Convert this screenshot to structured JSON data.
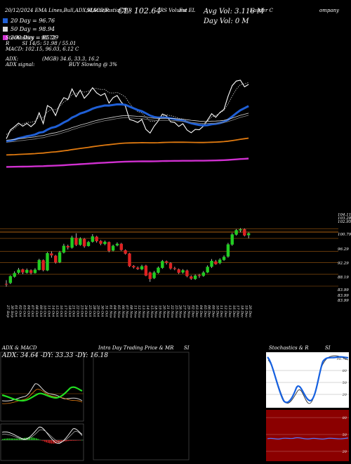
{
  "header": {
    "date": "20/12/2024",
    "ema": "EMA Lines,Bull,ADX,MACD,R",
    "si": "SI,Stochastics,MR",
    "rs": "RS Volume EL",
    "ticker_fragment": "Est",
    "company_fragment": "Lauder C",
    "company_fragment2": "ompany",
    "cl": "CL: 102.64",
    "avg_vol": "Avg Vol: 3.116  M",
    "day_vol": "Day Vol: 0   M"
  },
  "legend": [
    {
      "label": "20  Day = 96.76",
      "color": "#1f5fd6"
    },
    {
      "label": "50  Day = 98.94",
      "color": "#d8d8d8"
    },
    {
      "label": "200  Day = 85.29",
      "color": "#d030d0"
    }
  ],
  "indicators": {
    "stochastics": "Stochastics = 98.73",
    "r": "R",
    "si_line": "SI 14/5: 51.98  / 55.01",
    "macd": "MACD: 102.15,  96.03,  6.12  C",
    "adx_label": "ADX:",
    "adx_values": "(MGB) 34.6,  33.3,  16.2",
    "adx_signal_label": "ADX  signal:",
    "adx_signal": "BUY Slowing @ 3%"
  },
  "price_labels": [
    "104.11",
    "103.28",
    "102.95",
    "100.79",
    "96.29",
    "92.29",
    "88.19",
    "83.99",
    "83.99",
    "83.99"
  ],
  "date_labels": [
    "27 Sep",
    "30 Sep",
    "01 Oct",
    "02 Oct",
    "03 Oct",
    "04 Oct",
    "07 Oct",
    "08 Oct",
    "09 Oct",
    "10 Oct",
    "11 Oct",
    "14 Oct",
    "15 Oct",
    "16 Oct",
    "17 Oct",
    "18 Oct",
    "21 Oct",
    "22 Oct",
    "23 Oct",
    "24 Oct",
    "25 Oct",
    "28 Oct",
    "29 Oct",
    "30 Oct",
    "31 Oct",
    "01 Nov",
    "04 Nov",
    "05 Nov",
    "06 Nov",
    "07 Nov",
    "08 Nov",
    "11 Nov",
    "12 Nov",
    "13 Nov",
    "14 Nov",
    "15 Nov",
    "18 Nov",
    "19 Nov",
    "20 Nov",
    "21 Nov",
    "22 Nov",
    "25 Nov",
    "26 Nov",
    "27 Nov",
    "29 Nov",
    "02 Dec",
    "03 Dec",
    "04 Dec",
    "05 Dec",
    "06 Dec",
    "09 Dec",
    "10 Dec",
    "11 Dec",
    "12 Dec",
    "13 Dec",
    "16 Dec",
    "17 Dec",
    "18 Dec",
    "19 Dec",
    "20 Dec"
  ],
  "panels": {
    "adx_title": "ADX  & MACD",
    "adx_values": "ADX: 34.64  -DY: 33.33  -DY: 16.18",
    "intra_title": "Intra  Day Trading Price  & MR",
    "intra_si": "SI",
    "stoch_title": "Stochastics & R",
    "stoch_si": "SI",
    "stoch_ticks": [
      "98.73",
      "80",
      "50",
      "20"
    ],
    "si_ticks": [
      "80",
      "50",
      "20"
    ]
  },
  "colors": {
    "up": "#22cc22",
    "down": "#dd2222",
    "ema20": "#1f5fd6",
    "ema50": "#d8d8d8",
    "ema200": "#d030d0",
    "ema100": "#e07a10",
    "grid": "#a05a10",
    "si_bg": "#8b0000"
  },
  "chart_data": {
    "type": "candlestick",
    "x": [
      "27 Sep",
      "30 Sep",
      "01 Oct",
      "02 Oct",
      "03 Oct",
      "04 Oct",
      "07 Oct",
      "08 Oct",
      "09 Oct",
      "10 Oct",
      "11 Oct",
      "14 Oct",
      "15 Oct",
      "16 Oct",
      "17 Oct",
      "18 Oct",
      "21 Oct",
      "22 Oct",
      "23 Oct",
      "24 Oct",
      "25 Oct",
      "28 Oct",
      "29 Oct",
      "30 Oct",
      "31 Oct",
      "01 Nov",
      "04 Nov",
      "05 Nov",
      "06 Nov",
      "07 Nov",
      "08 Nov",
      "11 Nov",
      "12 Nov",
      "13 Nov",
      "14 Nov",
      "15 Nov",
      "18 Nov",
      "19 Nov",
      "20 Nov",
      "21 Nov",
      "22 Nov",
      "25 Nov",
      "26 Nov",
      "27 Nov",
      "29 Nov",
      "02 Dec",
      "03 Dec",
      "04 Dec",
      "05 Dec",
      "06 Dec",
      "09 Dec",
      "10 Dec",
      "11 Dec",
      "12 Dec",
      "13 Dec",
      "16 Dec",
      "17 Dec",
      "18 Dec",
      "19 Dec",
      "20 Dec"
    ],
    "series": [
      {
        "open": 84.8,
        "close": 84.6,
        "high": 86.1,
        "low": 83.8
      },
      {
        "open": 85.1,
        "close": 87.5,
        "high": 87.8,
        "low": 84.7
      },
      {
        "open": 87.3,
        "close": 88.6,
        "high": 89.2,
        "low": 87.0
      },
      {
        "open": 88.7,
        "close": 89.8,
        "high": 90.4,
        "low": 88.3
      },
      {
        "open": 89.9,
        "close": 88.8,
        "high": 90.1,
        "low": 88.2
      },
      {
        "open": 88.7,
        "close": 89.7,
        "high": 90.2,
        "low": 88.4
      },
      {
        "open": 89.6,
        "close": 88.6,
        "high": 89.9,
        "low": 88.1
      },
      {
        "open": 88.6,
        "close": 89.8,
        "high": 90.3,
        "low": 88.4
      },
      {
        "open": 89.7,
        "close": 93.2,
        "high": 93.6,
        "low": 89.5
      },
      {
        "open": 93.1,
        "close": 89.6,
        "high": 93.4,
        "low": 89.2
      },
      {
        "open": 89.5,
        "close": 95.6,
        "high": 96.0,
        "low": 89.3
      },
      {
        "open": 95.5,
        "close": 94.8,
        "high": 96.2,
        "low": 94.0
      },
      {
        "open": 94.7,
        "close": 92.3,
        "high": 95.0,
        "low": 91.9
      },
      {
        "open": 92.4,
        "close": 95.9,
        "high": 96.4,
        "low": 92.1
      },
      {
        "open": 95.8,
        "close": 98.2,
        "high": 98.9,
        "low": 95.5
      },
      {
        "open": 98.1,
        "close": 97.6,
        "high": 98.6,
        "low": 96.9
      },
      {
        "open": 97.5,
        "close": 101.1,
        "high": 101.7,
        "low": 97.2
      },
      {
        "open": 101.0,
        "close": 98.5,
        "high": 102.6,
        "low": 98.1
      },
      {
        "open": 98.5,
        "close": 100.7,
        "high": 101.2,
        "low": 98.2
      },
      {
        "open": 100.6,
        "close": 98.0,
        "high": 100.9,
        "low": 97.5
      },
      {
        "open": 98.1,
        "close": 99.5,
        "high": 99.9,
        "low": 97.9
      },
      {
        "open": 99.6,
        "close": 101.5,
        "high": 102.3,
        "low": 99.3
      },
      {
        "open": 101.4,
        "close": 99.8,
        "high": 101.7,
        "low": 99.3
      },
      {
        "open": 99.9,
        "close": 98.9,
        "high": 100.2,
        "low": 98.4
      },
      {
        "open": 98.8,
        "close": 99.6,
        "high": 100.0,
        "low": 98.4
      },
      {
        "open": 99.5,
        "close": 96.4,
        "high": 99.7,
        "low": 95.9
      },
      {
        "open": 96.5,
        "close": 98.2,
        "high": 98.6,
        "low": 96.2
      },
      {
        "open": 98.3,
        "close": 98.9,
        "high": 99.4,
        "low": 98.0
      },
      {
        "open": 98.9,
        "close": 96.7,
        "high": 99.2,
        "low": 96.4
      },
      {
        "open": 96.6,
        "close": 95.4,
        "high": 96.9,
        "low": 95.1
      },
      {
        "open": 95.5,
        "close": 91.0,
        "high": 95.7,
        "low": 90.7
      },
      {
        "open": 91.1,
        "close": 90.6,
        "high": 91.4,
        "low": 90.2
      },
      {
        "open": 90.5,
        "close": 90.0,
        "high": 90.9,
        "low": 89.7
      },
      {
        "open": 89.9,
        "close": 91.0,
        "high": 91.5,
        "low": 89.6
      },
      {
        "open": 91.2,
        "close": 87.7,
        "high": 91.5,
        "low": 87.5
      },
      {
        "open": 88.8,
        "close": 86.5,
        "high": 89.1,
        "low": 85.5
      },
      {
        "open": 86.8,
        "close": 88.8,
        "high": 89.3,
        "low": 86.5
      },
      {
        "open": 88.7,
        "close": 90.5,
        "high": 90.9,
        "low": 88.4
      },
      {
        "open": 90.4,
        "close": 92.8,
        "high": 93.2,
        "low": 90.1
      },
      {
        "open": 92.7,
        "close": 92.2,
        "high": 93.0,
        "low": 91.6
      },
      {
        "open": 92.1,
        "close": 90.2,
        "high": 92.4,
        "low": 89.8
      },
      {
        "open": 90.3,
        "close": 90.0,
        "high": 90.8,
        "low": 89.6
      },
      {
        "open": 89.9,
        "close": 88.7,
        "high": 90.2,
        "low": 88.3
      },
      {
        "open": 88.8,
        "close": 89.6,
        "high": 90.0,
        "low": 88.4
      },
      {
        "open": 89.5,
        "close": 87.5,
        "high": 89.8,
        "low": 87.1
      },
      {
        "open": 87.4,
        "close": 86.6,
        "high": 87.8,
        "low": 86.2
      },
      {
        "open": 86.5,
        "close": 87.7,
        "high": 88.1,
        "low": 86.2
      },
      {
        "open": 87.9,
        "close": 87.6,
        "high": 88.3,
        "low": 86.9
      },
      {
        "open": 87.6,
        "close": 88.8,
        "high": 89.3,
        "low": 87.3
      },
      {
        "open": 88.8,
        "close": 90.8,
        "high": 91.3,
        "low": 88.6
      },
      {
        "open": 90.8,
        "close": 92.9,
        "high": 93.5,
        "low": 90.4
      },
      {
        "open": 92.7,
        "close": 91.7,
        "high": 93.2,
        "low": 91.5
      },
      {
        "open": 92.1,
        "close": 93.3,
        "high": 93.8,
        "low": 91.7
      },
      {
        "open": 93.2,
        "close": 94.3,
        "high": 94.8,
        "low": 92.9
      },
      {
        "open": 94.4,
        "close": 98.7,
        "high": 99.2,
        "low": 94.0
      },
      {
        "open": 98.6,
        "close": 102.2,
        "high": 102.7,
        "low": 98.2
      },
      {
        "open": 102.1,
        "close": 103.7,
        "high": 104.1,
        "low": 101.8
      },
      {
        "open": 103.6,
        "close": 104.0,
        "high": 104.4,
        "low": 102.9
      },
      {
        "open": 104.0,
        "close": 101.8,
        "high": 104.3,
        "low": 101.5
      },
      {
        "open": 101.9,
        "close": 102.6,
        "high": 102.9,
        "low": 100.8
      }
    ],
    "ylim": [
      80.9,
      106.5
    ]
  }
}
